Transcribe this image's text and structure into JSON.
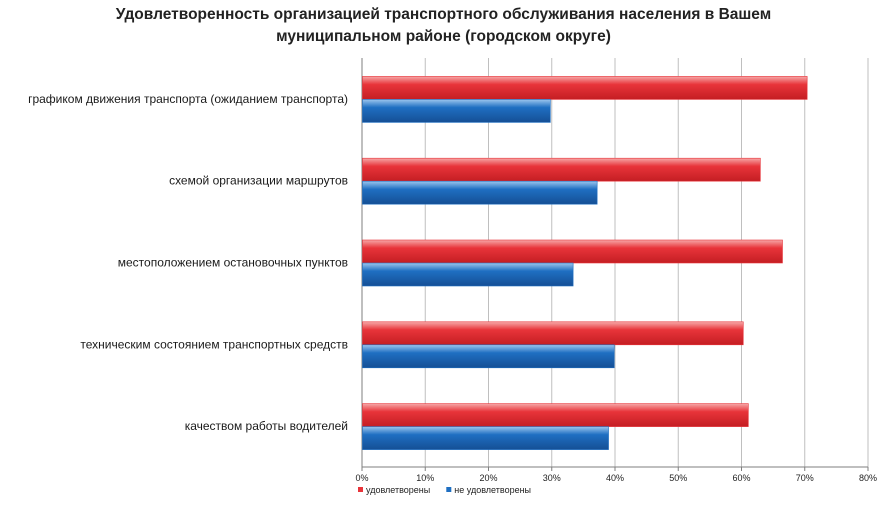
{
  "chart_data": {
    "type": "bar",
    "orientation": "horizontal",
    "title_lines": [
      "Удовлетворенность организацией транспортного обслуживания населения в Вашем",
      "муниципальном районе (городском округе)"
    ],
    "categories": [
      "графиком движения транспорта  (ожиданием транспорта)",
      "схемой организации маршрутов",
      "местоположением  остановочных  пунктов",
      "техническим состоянием  транспортных  средств",
      "качеством работы  водителей"
    ],
    "series": [
      {
        "name": "удовлетворены",
        "color": "#e8343a",
        "values": [
          70.3,
          62.9,
          66.4,
          60.2,
          61.0
        ]
      },
      {
        "name": "не удовлетворены",
        "color": "#1f6fc2",
        "values": [
          29.7,
          37.1,
          33.3,
          39.8,
          38.9
        ]
      }
    ],
    "xlim": [
      0,
      80
    ],
    "xticks": [
      "0%",
      "10%",
      "20%",
      "30%",
      "40%",
      "50%",
      "60%",
      "70%",
      "80%"
    ],
    "tick_step": 10,
    "grid": true,
    "legend_position": "bottom-left"
  }
}
